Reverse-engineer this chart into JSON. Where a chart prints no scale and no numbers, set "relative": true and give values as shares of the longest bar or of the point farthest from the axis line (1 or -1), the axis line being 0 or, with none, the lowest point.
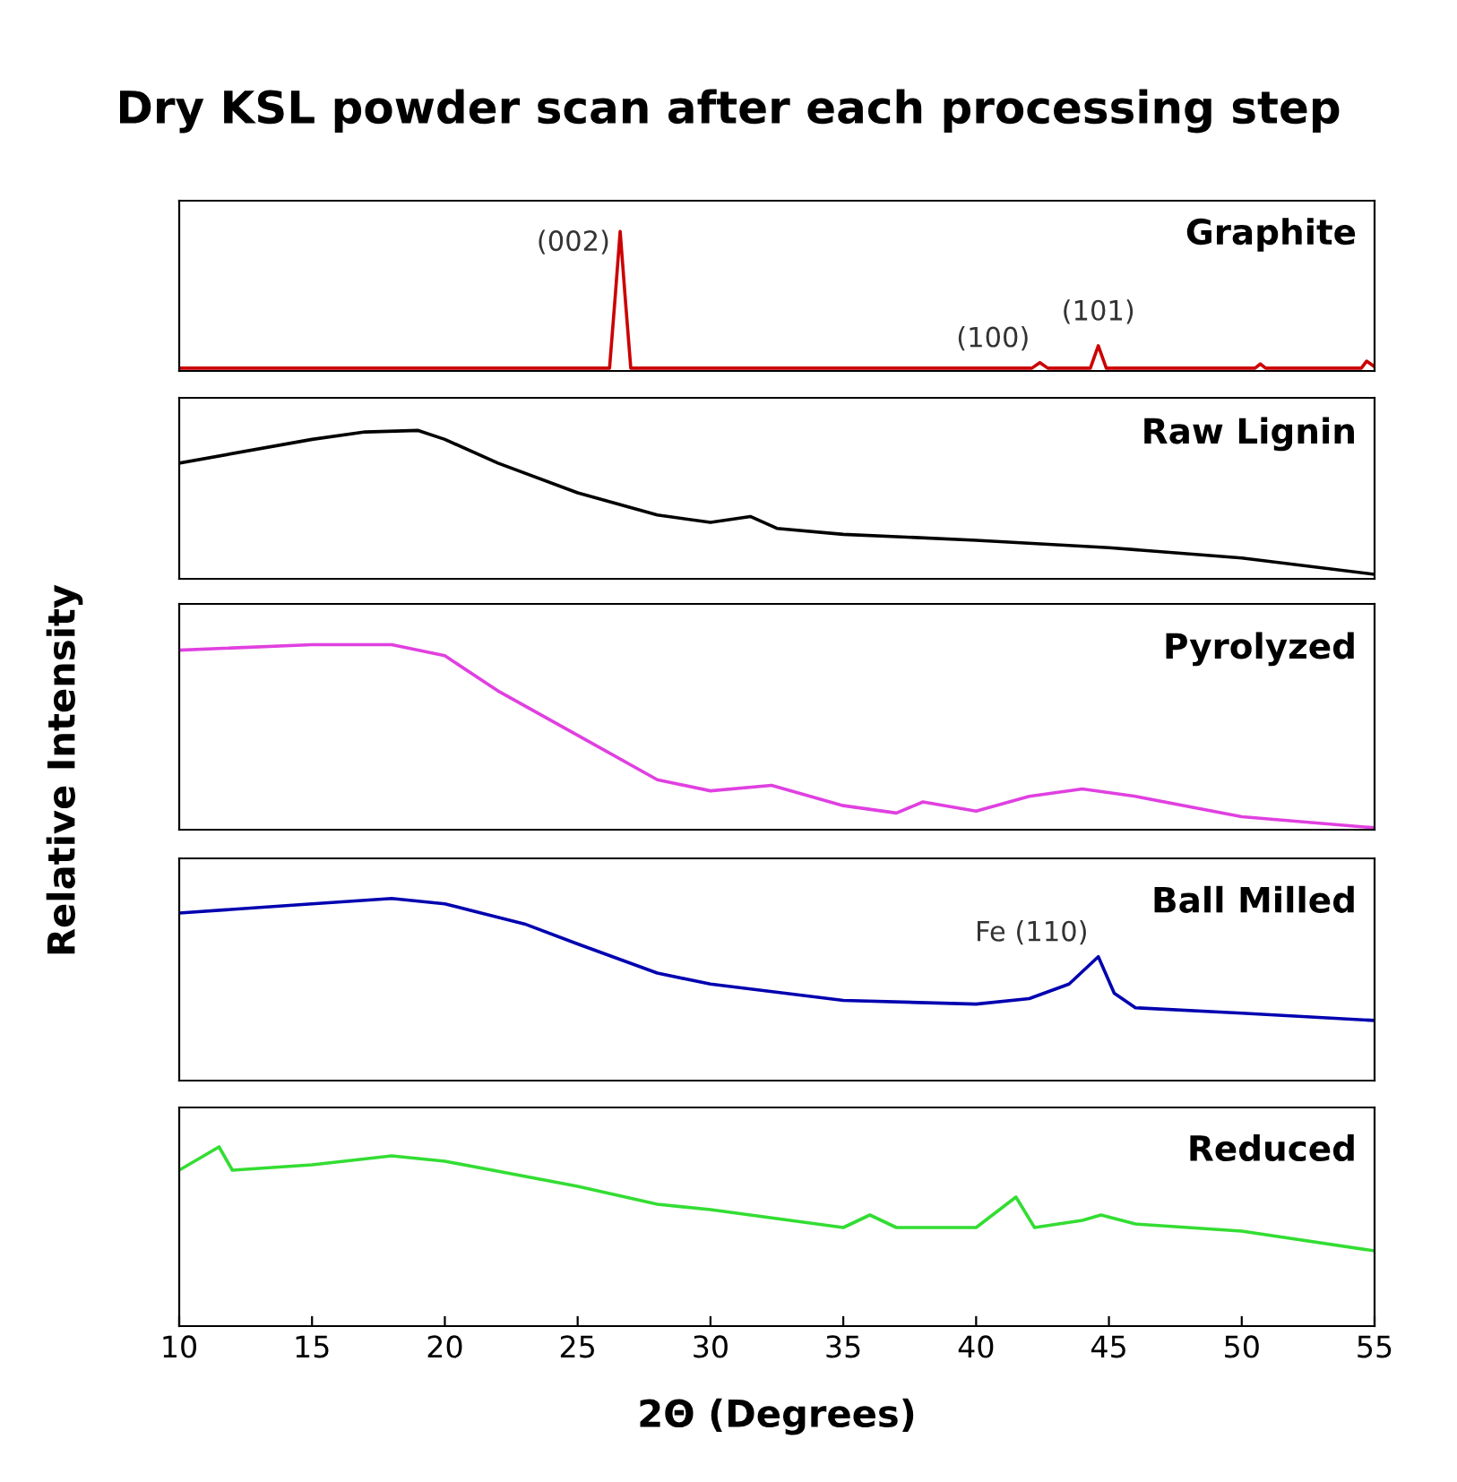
{
  "chart_data": [
    {
      "type": "line",
      "title": "Dry KSL powder scan after each processing step",
      "relative": true,
      "xlim": [
        10,
        55
      ],
      "xticks": [
        10,
        15,
        20,
        25,
        30,
        35,
        40,
        45,
        50,
        55
      ],
      "tick_labels": false,
      "x": [
        10,
        26.2,
        26.4,
        26.6,
        26.8,
        27.0,
        42.1,
        42.4,
        42.7,
        44.3,
        44.6,
        44.9,
        50.5,
        50.7,
        50.9,
        54.5,
        54.7,
        55
      ],
      "series": [
        {
          "name": "Graphite",
          "color": "#cc0000",
          "values": [
            0.02,
            0.02,
            0.5,
            1,
            0.5,
            0.02,
            0.02,
            0.06,
            0.02,
            0.02,
            0.18,
            0.02,
            0.02,
            0.05,
            0.02,
            0.02,
            0.07,
            0.03
          ]
        }
      ],
      "annotations": [
        {
          "text": "(002)",
          "x": 26.6,
          "y": 0.75
        },
        {
          "text": "(100)",
          "x": 42.4,
          "y": 0.06
        },
        {
          "text": "(101)",
          "x": 44.6,
          "y": 0.18
        }
      ]
    },
    {
      "type": "line",
      "relative": true,
      "xlim": [
        10,
        55
      ],
      "xticks": [
        10,
        15,
        20,
        25,
        30,
        35,
        40,
        45,
        50,
        55
      ],
      "tick_labels": false,
      "x": [
        10,
        15,
        17,
        19,
        20,
        22,
        25,
        28,
        30,
        31.5,
        32.5,
        35,
        40,
        45,
        50,
        55
      ],
      "series": [
        {
          "name": "Raw Lignin",
          "color": "#000000",
          "values": [
            0.78,
            0.94,
            0.99,
            1,
            0.94,
            0.78,
            0.58,
            0.43,
            0.38,
            0.42,
            0.34,
            0.3,
            0.26,
            0.21,
            0.14,
            0.03
          ]
        }
      ]
    },
    {
      "type": "line",
      "ylabel": "Relative Intensity",
      "relative": true,
      "xlim": [
        10,
        55
      ],
      "xticks": [
        10,
        15,
        20,
        25,
        30,
        35,
        40,
        45,
        50,
        55
      ],
      "tick_labels": false,
      "x": [
        10,
        15,
        18,
        20,
        22,
        25,
        28,
        30,
        32.3,
        35,
        37,
        38,
        40,
        42,
        44,
        46,
        50,
        55
      ],
      "series": [
        {
          "name": "Pyrolyzed",
          "color": "#e040e0",
          "values": [
            0.97,
            1,
            1,
            0.94,
            0.75,
            0.51,
            0.27,
            0.21,
            0.24,
            0.13,
            0.09,
            0.15,
            0.1,
            0.18,
            0.22,
            0.18,
            0.07,
            0.01
          ]
        }
      ]
    },
    {
      "type": "line",
      "relative": true,
      "xlim": [
        10,
        55
      ],
      "xticks": [
        10,
        15,
        20,
        25,
        30,
        35,
        40,
        45,
        50,
        55
      ],
      "tick_labels": false,
      "x": [
        10,
        15,
        18,
        20,
        23,
        25,
        28,
        30,
        35,
        40,
        42,
        43.5,
        44.6,
        45.2,
        46,
        50,
        55
      ],
      "series": [
        {
          "name": "Ball Milled",
          "color": "#0000b0",
          "values": [
            0.92,
            0.97,
            1,
            0.97,
            0.86,
            0.75,
            0.59,
            0.53,
            0.44,
            0.42,
            0.45,
            0.53,
            0.68,
            0.48,
            0.4,
            0.37,
            0.33
          ]
        }
      ],
      "annotations": [
        {
          "text": "Fe (110)",
          "x": 44.6,
          "y": 0.68
        }
      ]
    },
    {
      "type": "line",
      "xlabel": "2Θ (Degrees)",
      "relative": true,
      "xlim": [
        10,
        55
      ],
      "xticks": [
        10,
        15,
        20,
        25,
        30,
        35,
        40,
        45,
        50,
        55
      ],
      "tick_labels": "x",
      "x": [
        10,
        11.5,
        12,
        15,
        18,
        20,
        25,
        28,
        30,
        35,
        36,
        37,
        40,
        41.5,
        42.2,
        44,
        44.7,
        46,
        50,
        55
      ],
      "series": [
        {
          "name": "Reduced",
          "color": "#33dd33",
          "values": [
            0.87,
            1,
            0.87,
            0.9,
            0.95,
            0.92,
            0.78,
            0.68,
            0.65,
            0.55,
            0.62,
            0.55,
            0.55,
            0.72,
            0.55,
            0.59,
            0.62,
            0.57,
            0.53,
            0.42
          ]
        }
      ]
    }
  ]
}
